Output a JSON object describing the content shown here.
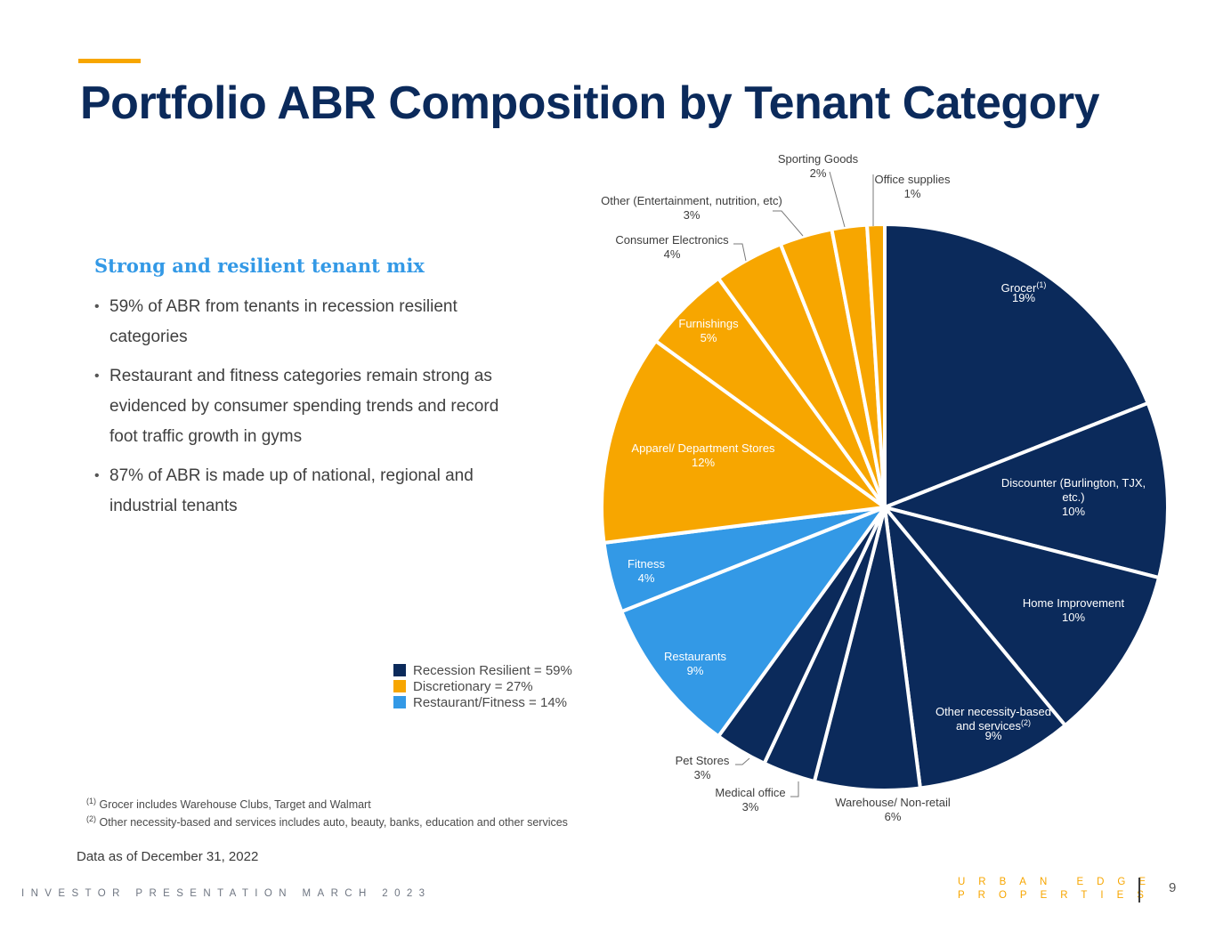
{
  "title": "Portfolio ABR Composition by Tenant Category",
  "subhead": "Strong and resilient tenant mix",
  "bullets": [
    "59% of ABR from tenants in recession resilient categories",
    "Restaurant and fitness categories remain strong as evidenced by consumer spending trends and record foot traffic growth in gyms",
    "87% of ABR is made up of national, regional  and industrial tenants"
  ],
  "legend": [
    {
      "label": "Recession Resilient = 59%",
      "color": "#0b2a5b"
    },
    {
      "label": "Discretionary = 27%",
      "color": "#f7a600"
    },
    {
      "label": "Restaurant/Fitness = 14%",
      "color": "#3399e6"
    }
  ],
  "footnotes": {
    "fn1_mark": "(1)",
    "fn1_text": " Grocer includes Warehouse Clubs, Target and Walmart",
    "fn2_mark": "(2)",
    "fn2_text": " Other necessity-based and services includes auto, beauty, banks, education and other services"
  },
  "as_of": "Data as of December 31, 2022",
  "footer": {
    "left": "INVESTOR PRESENTATION MARCH 2023",
    "brand_line1": "URBAN EDGE",
    "brand_line2": "PROPERTIES",
    "page_number": "9"
  },
  "colors": {
    "resilient": "#0b2a5b",
    "discretionary": "#f7a600",
    "restaurant_fitness": "#3399e6"
  },
  "chart_data": {
    "type": "pie",
    "title": "Portfolio ABR Composition by Tenant Category",
    "unit": "% of ABR",
    "slices": [
      {
        "name": "Grocer",
        "sup": "(1)",
        "value": 19,
        "label": "19%",
        "group": "Recession Resilient"
      },
      {
        "name": "Discounter (Burlington, TJX, etc.)",
        "value": 10,
        "label": "10%",
        "group": "Recession Resilient"
      },
      {
        "name": "Home Improvement",
        "value": 10,
        "label": "10%",
        "group": "Recession Resilient"
      },
      {
        "name": "Other necessity-based and services",
        "sup": "(2)",
        "value": 9,
        "label": "9%",
        "group": "Recession Resilient"
      },
      {
        "name": "Warehouse/ Non-retail",
        "value": 6,
        "label": "6%",
        "group": "Recession Resilient"
      },
      {
        "name": "Medical office",
        "value": 3,
        "label": "3%",
        "group": "Recession Resilient"
      },
      {
        "name": "Pet Stores",
        "value": 3,
        "label": "3%",
        "group": "Recession Resilient"
      },
      {
        "name": "Restaurants",
        "value": 9,
        "label": "9%",
        "group": "Restaurant/Fitness"
      },
      {
        "name": "Fitness",
        "value": 4,
        "label": "4%",
        "group": "Restaurant/Fitness"
      },
      {
        "name": "Apparel/ Department Stores",
        "value": 12,
        "label": "12%",
        "group": "Discretionary"
      },
      {
        "name": "Furnishings",
        "value": 5,
        "label": "5%",
        "group": "Discretionary"
      },
      {
        "name": "Consumer Electronics",
        "value": 4,
        "label": "4%",
        "group": "Discretionary"
      },
      {
        "name": "Other (Entertainment, nutrition, etc)",
        "value": 3,
        "label": "3%",
        "group": "Discretionary"
      },
      {
        "name": "Sporting Goods",
        "value": 2,
        "label": "2%",
        "group": "Discretionary"
      },
      {
        "name": "Office supplies",
        "value": 1,
        "label": "1%",
        "group": "Discretionary"
      }
    ]
  }
}
